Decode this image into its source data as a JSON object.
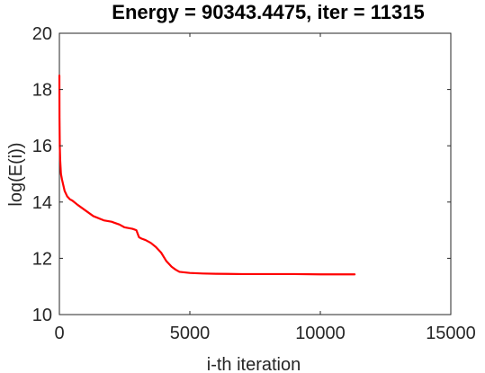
{
  "chart_data": {
    "type": "line",
    "title": "Energy = 90343.4475, iter = 11315",
    "xlabel": "i-th iteration",
    "ylabel": "log(E(i))",
    "xlim": [
      0,
      15000
    ],
    "ylim": [
      10,
      20
    ],
    "xticks": [
      0,
      5000,
      10000,
      15000
    ],
    "yticks": [
      10,
      12,
      14,
      16,
      18,
      20
    ],
    "xtick_labels": [
      "0",
      "5000",
      "10000",
      "15000"
    ],
    "ytick_labels": [
      "10",
      "12",
      "14",
      "16",
      "18",
      "20"
    ],
    "grid": false,
    "legend": "none",
    "series": [
      {
        "color": "#ff0000",
        "x": [
          0,
          5,
          15,
          30,
          60,
          100,
          150,
          200,
          300,
          400,
          500,
          700,
          1000,
          1300,
          1700,
          2000,
          2300,
          2500,
          2800,
          2950,
          3050,
          3150,
          3300,
          3500,
          3700,
          3900,
          4100,
          4300,
          4450,
          4600,
          4800,
          5000,
          5500,
          6000,
          7000,
          8000,
          9000,
          10000,
          11000,
          11315
        ],
        "y": [
          18.5,
          17.0,
          16.0,
          15.5,
          15.0,
          14.8,
          14.6,
          14.4,
          14.2,
          14.1,
          14.05,
          13.9,
          13.7,
          13.5,
          13.35,
          13.3,
          13.2,
          13.1,
          13.05,
          13.0,
          12.75,
          12.7,
          12.65,
          12.55,
          12.4,
          12.2,
          11.9,
          11.7,
          11.6,
          11.52,
          11.5,
          11.48,
          11.46,
          11.45,
          11.44,
          11.44,
          11.44,
          11.43,
          11.43,
          11.43
        ]
      }
    ]
  }
}
